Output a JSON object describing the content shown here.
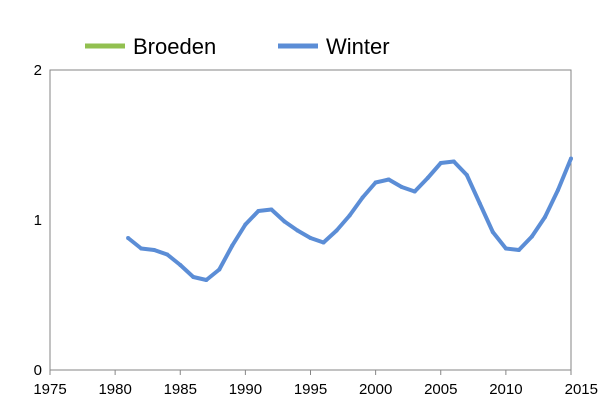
{
  "chart_data": {
    "type": "line",
    "title": "",
    "xlabel": "",
    "ylabel": "",
    "xlim": [
      1975,
      2015
    ],
    "ylim": [
      0,
      2
    ],
    "x_ticks": [
      "1975",
      "1980",
      "1985",
      "1990",
      "1995",
      "2000",
      "2005",
      "2010",
      "2015"
    ],
    "y_ticks": [
      "0",
      "1",
      "2"
    ],
    "grid": false,
    "legend_position": "top",
    "series": [
      {
        "name": "Broeden",
        "color": "#92c050",
        "x": [],
        "values": []
      },
      {
        "name": "Winter",
        "color": "#5b8dd6",
        "x": [
          1981,
          1982,
          1983,
          1984,
          1985,
          1986,
          1987,
          1988,
          1989,
          1990,
          1991,
          1992,
          1993,
          1994,
          1995,
          1996,
          1997,
          1998,
          1999,
          2000,
          2001,
          2002,
          2003,
          2004,
          2005,
          2006,
          2007,
          2008,
          2009,
          2010,
          2011,
          2012,
          2013,
          2014,
          2015
        ],
        "values": [
          0.88,
          0.81,
          0.8,
          0.77,
          0.7,
          0.62,
          0.6,
          0.67,
          0.83,
          0.97,
          1.06,
          1.07,
          0.99,
          0.93,
          0.88,
          0.85,
          0.93,
          1.03,
          1.15,
          1.25,
          1.27,
          1.22,
          1.19,
          1.28,
          1.38,
          1.39,
          1.3,
          1.11,
          0.92,
          0.81,
          0.8,
          0.89,
          1.02,
          1.2,
          1.41
        ]
      }
    ]
  }
}
